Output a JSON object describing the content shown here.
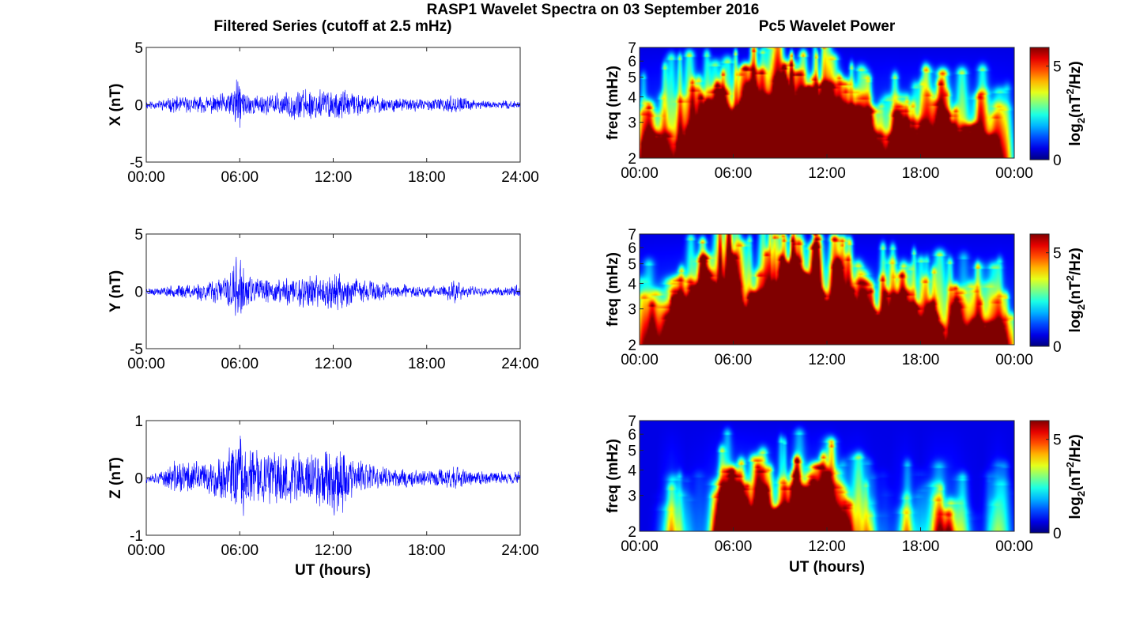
{
  "figure": {
    "title": "RASP1 Wavelet Spectra on 03 September 2016",
    "left_title": "Filtered Series (cutoff at 2.5 mHz)",
    "right_title": "Pc5 Wavelet Power",
    "left_xlabel": "UT (hours)",
    "right_xlabel": "UT (hours)"
  },
  "chart_data": [
    {
      "type": "line",
      "component": "X",
      "ylabel": "X (nT)",
      "xlim_hours": [
        0,
        24
      ],
      "ylim": [
        -5,
        5
      ],
      "yticks": [
        "5",
        "0",
        "-5"
      ],
      "xticks": [
        "00:00",
        "06:00",
        "12:00",
        "18:00",
        "24:00"
      ],
      "series": [
        {
          "color": "#0000ff"
        }
      ],
      "amplitude_envelope": {
        "hours": [
          0,
          1,
          2,
          3,
          4,
          5,
          5.5,
          5.9,
          6.3,
          7,
          8,
          9,
          10,
          11,
          12,
          12.5,
          13,
          14,
          15,
          16,
          17,
          18,
          19,
          19.8,
          20.5,
          21,
          22,
          23,
          24
        ],
        "values": [
          0.35,
          0.4,
          0.7,
          0.6,
          0.7,
          0.9,
          1.3,
          2.3,
          1.2,
          0.8,
          0.8,
          1.0,
          1.3,
          1.4,
          1.2,
          1.2,
          0.9,
          0.8,
          0.7,
          0.55,
          0.5,
          0.45,
          0.5,
          0.8,
          0.5,
          0.4,
          0.35,
          0.3,
          0.3
        ]
      }
    },
    {
      "type": "heatmap",
      "component": "X",
      "ylabel": "freq (mHz)",
      "yscale": "log",
      "ylim_mHz": [
        2,
        7
      ],
      "yticks": [
        "7",
        "6",
        "5",
        "4",
        "3",
        "2"
      ],
      "xticks": [
        "00:00",
        "06:00",
        "12:00",
        "18:00",
        "00:00"
      ],
      "colorbar": {
        "label": "log2(nT^2/Hz)",
        "ticks": [
          "5",
          "0"
        ],
        "range": [
          0,
          6
        ],
        "colormap": "jet"
      },
      "activity_envelope": {
        "hours": [
          0,
          1,
          2,
          3,
          4,
          5,
          6,
          7,
          8,
          9,
          10,
          11,
          12,
          13,
          14,
          15,
          16,
          17,
          18,
          19,
          20,
          21,
          22,
          23,
          24
        ],
        "values": [
          0.45,
          0.5,
          0.65,
          0.65,
          0.7,
          0.75,
          0.8,
          0.75,
          0.85,
          0.95,
          1.0,
          0.9,
          0.85,
          0.7,
          0.55,
          0.5,
          0.6,
          0.5,
          0.55,
          0.6,
          0.55,
          0.6,
          0.5,
          0.4,
          0.3
        ]
      }
    },
    {
      "type": "line",
      "component": "Y",
      "ylabel": "Y (nT)",
      "xlim_hours": [
        0,
        24
      ],
      "ylim": [
        -5,
        5
      ],
      "yticks": [
        "5",
        "0",
        "-5"
      ],
      "xticks": [
        "00:00",
        "06:00",
        "12:00",
        "18:00",
        "24:00"
      ],
      "series": [
        {
          "color": "#0000ff"
        }
      ],
      "amplitude_envelope": {
        "hours": [
          0,
          1,
          2,
          3,
          4,
          5,
          5.5,
          5.9,
          6.3,
          7,
          8,
          9,
          10,
          11,
          12,
          12.5,
          13,
          14,
          15,
          16,
          17,
          18,
          19,
          19.8,
          20.5,
          21,
          22,
          23,
          24
        ],
        "values": [
          0.3,
          0.35,
          0.5,
          0.7,
          0.8,
          1.2,
          1.8,
          3.2,
          1.5,
          1.0,
          0.9,
          1.2,
          1.4,
          1.2,
          1.5,
          1.5,
          1.1,
          0.9,
          0.8,
          0.6,
          0.5,
          0.45,
          0.5,
          1.0,
          0.5,
          0.4,
          0.35,
          0.35,
          0.6
        ]
      }
    },
    {
      "type": "heatmap",
      "component": "Y",
      "ylabel": "freq (mHz)",
      "yscale": "log",
      "ylim_mHz": [
        2,
        7
      ],
      "yticks": [
        "7",
        "6",
        "5",
        "4",
        "3",
        "2"
      ],
      "xticks": [
        "00:00",
        "06:00",
        "12:00",
        "18:00",
        "00:00"
      ],
      "colorbar": {
        "label": "log2(nT^2/Hz)",
        "ticks": [
          "5",
          "0"
        ],
        "range": [
          0,
          6
        ],
        "colormap": "jet"
      },
      "activity_envelope": {
        "hours": [
          0,
          1,
          2,
          3,
          4,
          5,
          6,
          7,
          8,
          9,
          10,
          11,
          12,
          13,
          14,
          15,
          16,
          17,
          18,
          19,
          20,
          21,
          22,
          23,
          24
        ],
        "values": [
          0.45,
          0.55,
          0.6,
          0.7,
          0.8,
          0.95,
          0.95,
          0.8,
          0.85,
          0.95,
          0.9,
          0.85,
          0.9,
          0.7,
          0.6,
          0.55,
          0.6,
          0.55,
          0.5,
          0.6,
          0.55,
          0.45,
          0.45,
          0.5,
          0.45
        ]
      }
    },
    {
      "type": "line",
      "component": "Z",
      "ylabel": "Z (nT)",
      "xlim_hours": [
        0,
        24
      ],
      "ylim": [
        -1,
        1
      ],
      "yticks": [
        "1",
        "0",
        "-1"
      ],
      "xticks": [
        "00:00",
        "06:00",
        "12:00",
        "18:00",
        "24:00"
      ],
      "series": [
        {
          "color": "#0000ff"
        }
      ],
      "amplitude_envelope": {
        "hours": [
          0,
          1,
          2,
          3,
          4,
          5,
          5.5,
          5.9,
          6.3,
          7,
          8,
          9,
          10,
          11,
          12,
          12.5,
          13,
          14,
          15,
          16,
          17,
          18,
          19,
          19.8,
          20.5,
          21,
          22,
          23,
          24
        ],
        "values": [
          0.08,
          0.1,
          0.3,
          0.3,
          0.25,
          0.35,
          0.5,
          0.8,
          0.55,
          0.45,
          0.4,
          0.45,
          0.45,
          0.5,
          0.55,
          0.6,
          0.35,
          0.25,
          0.2,
          0.15,
          0.15,
          0.15,
          0.15,
          0.2,
          0.12,
          0.12,
          0.1,
          0.1,
          0.1
        ]
      }
    },
    {
      "type": "heatmap",
      "component": "Z",
      "ylabel": "freq (mHz)",
      "yscale": "log",
      "ylim_mHz": [
        2,
        7
      ],
      "yticks": [
        "7",
        "6",
        "5",
        "4",
        "3",
        "2"
      ],
      "xticks": [
        "00:00",
        "06:00",
        "12:00",
        "18:00",
        "00:00"
      ],
      "colorbar": {
        "label": "log2(nT^2/Hz)",
        "ticks": [
          "5",
          "0"
        ],
        "range": [
          0,
          6
        ],
        "colormap": "jet"
      },
      "activity_envelope": {
        "hours": [
          0,
          1,
          2,
          3,
          4,
          5,
          6,
          7,
          8,
          9,
          10,
          11,
          12,
          13,
          14,
          15,
          16,
          17,
          18,
          19,
          20,
          21,
          22,
          23,
          24
        ],
        "values": [
          0.0,
          0.0,
          0.45,
          0.1,
          0.2,
          0.5,
          0.7,
          0.6,
          0.5,
          0.55,
          0.6,
          0.6,
          0.75,
          0.3,
          0.45,
          0.1,
          0.05,
          0.3,
          0.05,
          0.35,
          0.35,
          0.1,
          0.0,
          0.3,
          0.0
        ]
      }
    }
  ]
}
